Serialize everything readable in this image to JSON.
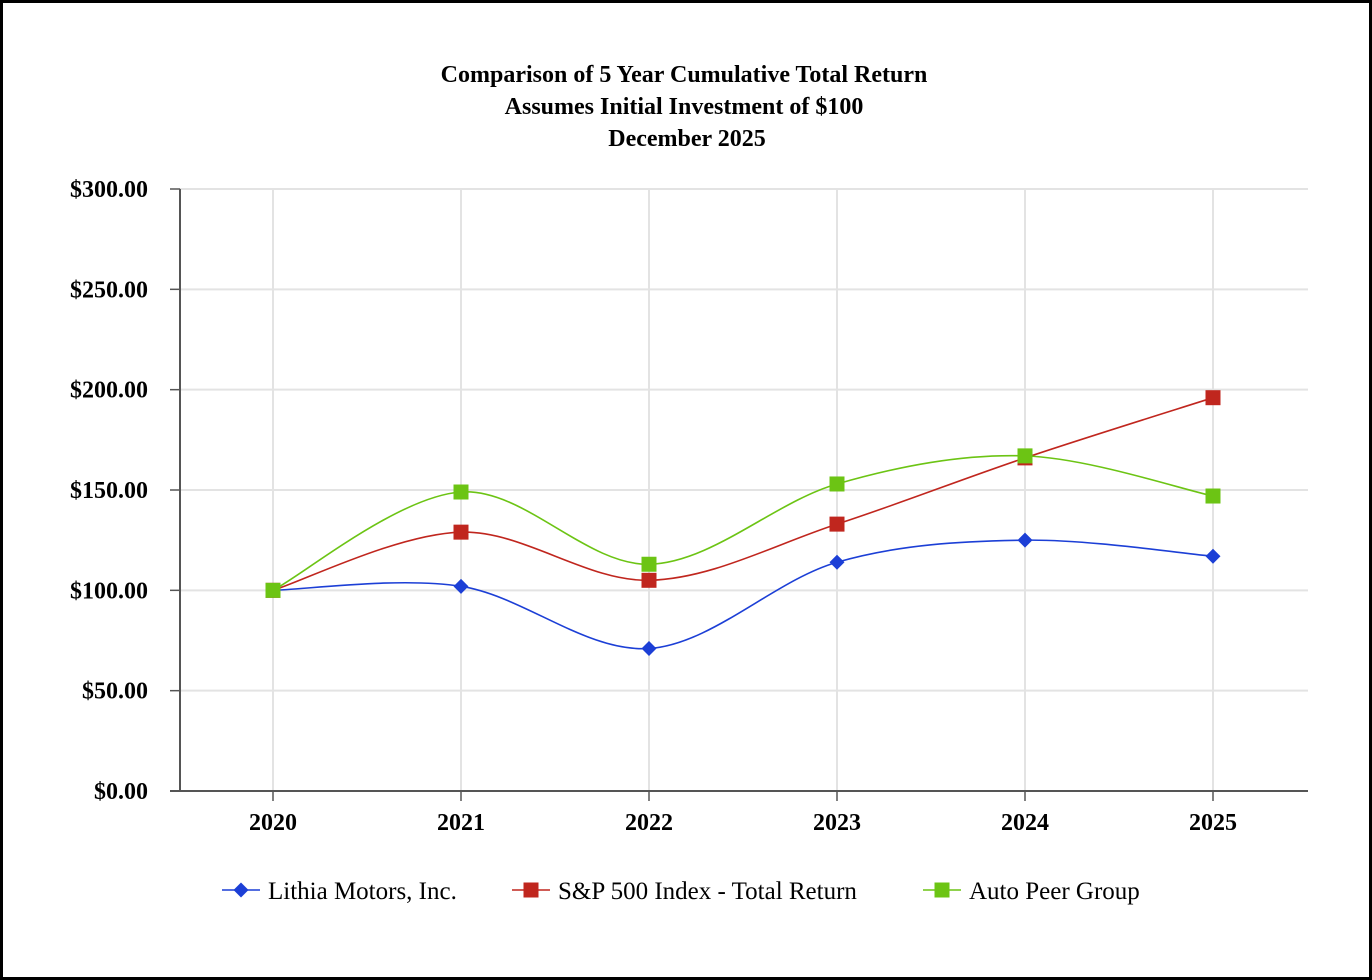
{
  "chart_data": {
    "type": "line",
    "title_lines": [
      "Comparison of 5 Year Cumulative Total Return",
      "Assumes Initial Investment of $100",
      "December 2025"
    ],
    "categories": [
      "2020",
      "2021",
      "2022",
      "2023",
      "2024",
      "2025"
    ],
    "y_ticks": [
      0,
      50,
      100,
      150,
      200,
      250,
      300
    ],
    "y_tick_labels": [
      "$0.00",
      "$50.00",
      "$100.00",
      "$150.00",
      "$200.00",
      "$250.00",
      "$300.00"
    ],
    "ylim": [
      0,
      300
    ],
    "grid": true,
    "legend_position": "bottom",
    "series": [
      {
        "name": "Lithia Motors, Inc.",
        "marker": "diamond",
        "color": "#1c3fd6",
        "values": [
          100,
          102,
          71,
          114,
          125,
          117
        ]
      },
      {
        "name": "S&P 500 Index - Total Return",
        "marker": "square",
        "color": "#c0261e",
        "values": [
          100,
          129,
          105,
          133,
          166,
          196
        ]
      },
      {
        "name": "Auto Peer Group",
        "marker": "square",
        "color": "#6cc414",
        "values": [
          100,
          149,
          113,
          153,
          167,
          147
        ]
      }
    ]
  }
}
